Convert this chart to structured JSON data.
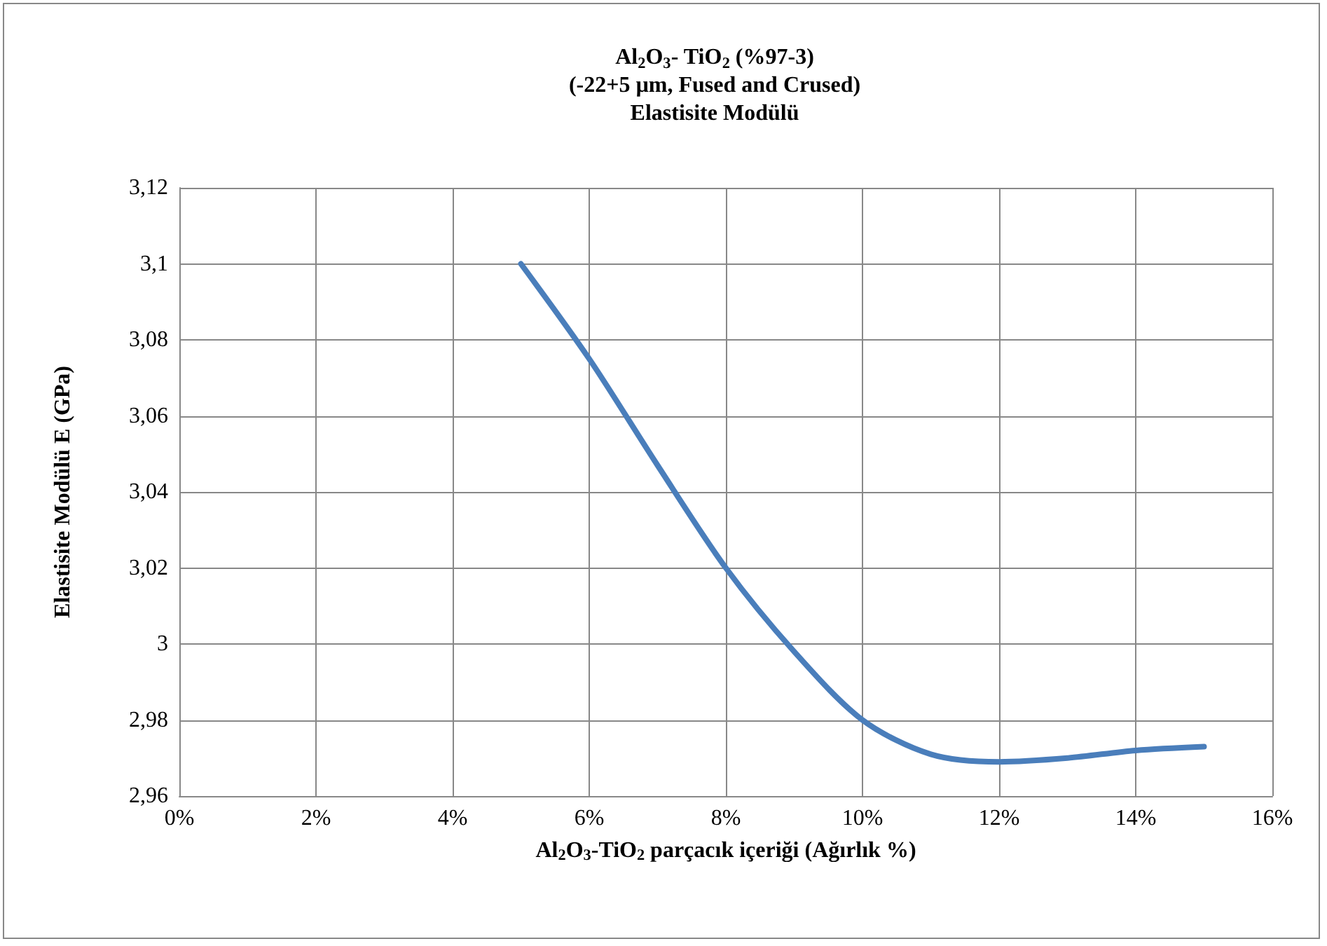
{
  "chart_data": {
    "type": "line",
    "title": "Al$_{2}$O$_{3}$- TiO$_{2}$ (%97-3)\n(-22+5 µm, Fused and Crused)\nElastisite Modülü",
    "xlabel": "Al$_{2}$O$_{3}$-TiO$_{2}$ parçacık içeriği (Ağırlık %)",
    "ylabel": "Elastisite Modülü E (GPa)",
    "x": [
      5,
      6,
      7,
      8,
      9,
      10,
      11,
      12,
      13,
      14,
      15
    ],
    "series": [
      {
        "color": "#4a7ebb",
        "values": [
          3.1,
          3.075,
          3.047,
          3.02,
          2.998,
          2.98,
          2.971,
          2.969,
          2.97,
          2.972,
          2.973
        ]
      }
    ],
    "xlim": [
      0,
      16
    ],
    "xticks": [
      {
        "value": 0,
        "label": "0%"
      },
      {
        "value": 2,
        "label": "2%"
      },
      {
        "value": 4,
        "label": "4%"
      },
      {
        "value": 6,
        "label": "6%"
      },
      {
        "value": 8,
        "label": "8%"
      },
      {
        "value": 10,
        "label": "10%"
      },
      {
        "value": 12,
        "label": "12%"
      },
      {
        "value": 14,
        "label": "14%"
      },
      {
        "value": 16,
        "label": "16%"
      }
    ],
    "ylim": [
      2.96,
      3.12
    ],
    "yticks": [
      {
        "value": 2.96,
        "label": "2,96"
      },
      {
        "value": 2.98,
        "label": "2,98"
      },
      {
        "value": 3,
        "label": "3"
      },
      {
        "value": 3.02,
        "label": "3,02"
      },
      {
        "value": 3.04,
        "label": "3,04"
      },
      {
        "value": 3.06,
        "label": "3,06"
      },
      {
        "value": 3.08,
        "label": "3,08"
      },
      {
        "value": 3.1,
        "label": "3,1"
      },
      {
        "value": 3.12,
        "label": "3,12"
      }
    ],
    "grid": true,
    "marker": "none",
    "line_style": "solid"
  }
}
